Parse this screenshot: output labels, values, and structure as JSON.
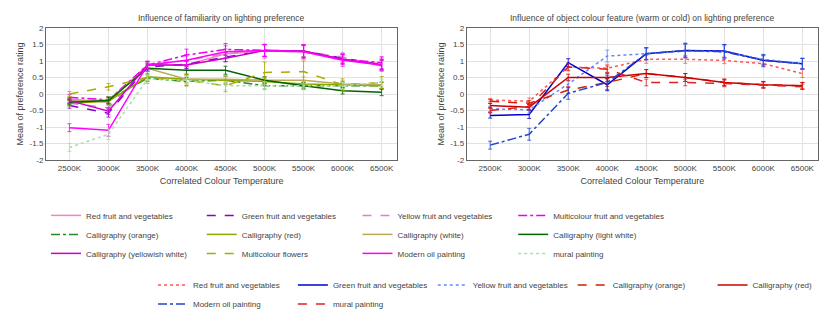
{
  "chart_data": [
    {
      "type": "line",
      "title": "Influence of familiarity on lighting preference",
      "xlabel": "Correlated Colour Temperature",
      "ylabel": "Mean of preference rating",
      "x": [
        2500,
        3000,
        3500,
        4000,
        4500,
        5000,
        5500,
        6000,
        6500
      ],
      "xlim": [
        2200,
        6700
      ],
      "xticks": [
        {
          "value": 2500,
          "label": "2500K"
        },
        {
          "value": 3000,
          "label": "3000K"
        },
        {
          "value": 3500,
          "label": "3500K"
        },
        {
          "value": 4000,
          "label": "4000K"
        },
        {
          "value": 4500,
          "label": "4500K"
        },
        {
          "value": 5000,
          "label": "5000K"
        },
        {
          "value": 5500,
          "label": "5500K"
        },
        {
          "value": 6000,
          "label": "6000K"
        },
        {
          "value": 6500,
          "label": "6500K"
        }
      ],
      "ylim": [
        -2,
        2
      ],
      "yticks": [
        -2,
        -1.5,
        -1,
        -0.5,
        0,
        0.5,
        1,
        1.5,
        2
      ],
      "grid": true,
      "legend": "bottom",
      "series": [
        {
          "name": "Red fruit and vegetables",
          "color": "#ff80c0",
          "line_style": "solid",
          "values": [
            -0.15,
            -0.25,
            0.88,
            0.88,
            1.22,
            1.3,
            1.28,
            1.05,
            0.92
          ],
          "error": [
            0.05,
            0.1,
            0.1,
            0.12,
            0.15,
            0.22,
            0.2,
            0.15,
            0.18
          ]
        },
        {
          "name": "Green fruit and vegetables",
          "color": "#8800cc",
          "line_style": "dashed",
          "values": [
            -0.35,
            -0.58,
            0.82,
            0.9,
            1.12,
            1.32,
            1.3,
            1.08,
            0.88
          ],
          "error": [
            0.08,
            0.12,
            0.1,
            0.12,
            0.14,
            0.18,
            0.18,
            0.14,
            0.16
          ]
        },
        {
          "name": "Yellow fruit and vegetables",
          "color": "#cc88cc",
          "line_style": "dashed",
          "values": [
            -0.28,
            -0.42,
            0.85,
            1.02,
            1.22,
            1.3,
            1.28,
            1.12,
            0.85
          ],
          "error": [
            0.08,
            0.12,
            0.1,
            0.12,
            0.14,
            0.18,
            0.18,
            0.14,
            0.16
          ]
        },
        {
          "name": "Multicolour fruit and vegetables",
          "color": "#ee00ee",
          "line_style": "dashdot",
          "values": [
            -0.1,
            -0.18,
            0.88,
            1.18,
            1.35,
            1.32,
            1.3,
            1.05,
            0.95
          ],
          "error": [
            0.08,
            0.1,
            0.1,
            0.18,
            0.18,
            0.18,
            0.2,
            0.14,
            0.18
          ]
        },
        {
          "name": "Calligraphy (orange)",
          "color": "#228B22",
          "line_style": "dashdot",
          "values": [
            -0.22,
            -0.18,
            0.48,
            0.38,
            0.42,
            0.25,
            0.25,
            0.25,
            0.25
          ],
          "error": [
            0.08,
            0.1,
            0.1,
            0.12,
            0.12,
            0.1,
            0.1,
            0.1,
            0.1
          ]
        },
        {
          "name": "Calligraphy (red)",
          "color": "#88aa00",
          "line_style": "solid",
          "values": [
            -0.28,
            -0.22,
            0.52,
            0.45,
            0.42,
            0.38,
            0.3,
            0.28,
            0.25
          ],
          "error": [
            0.08,
            0.1,
            0.1,
            0.12,
            0.12,
            0.1,
            0.1,
            0.1,
            0.1
          ]
        },
        {
          "name": "Calligraphy (white)",
          "color": "#bbaa55",
          "line_style": "solid",
          "values": [
            -0.22,
            -0.18,
            0.78,
            0.45,
            0.45,
            0.42,
            0.42,
            0.3,
            0.28
          ],
          "error": [
            0.08,
            0.1,
            0.1,
            0.1,
            0.1,
            0.1,
            0.1,
            0.1,
            0.1
          ]
        },
        {
          "name": "Calligraphy (light white)",
          "color": "#006400",
          "line_style": "solid",
          "values": [
            -0.25,
            -0.2,
            0.78,
            0.72,
            0.72,
            0.42,
            0.25,
            0.1,
            0.05
          ],
          "error": [
            0.08,
            0.1,
            0.1,
            0.12,
            0.12,
            0.1,
            0.1,
            0.1,
            0.1
          ]
        },
        {
          "name": "Calligraphy (yellowish white)",
          "color": "#cc00cc",
          "line_style": "solid",
          "values": [
            -0.2,
            -0.52,
            0.88,
            0.88,
            1.08,
            1.32,
            1.3,
            1.05,
            0.88
          ],
          "error": [
            0.08,
            0.1,
            0.1,
            0.1,
            0.1,
            0.18,
            0.18,
            0.14,
            0.14
          ]
        },
        {
          "name": "Multicolour flowers",
          "color": "#aaaa00",
          "line_style": "dashed",
          "values": [
            0.0,
            0.22,
            0.5,
            0.42,
            0.25,
            0.65,
            0.68,
            0.28,
            0.35
          ],
          "error": [
            0.08,
            0.1,
            0.18,
            0.18,
            0.18,
            0.32,
            0.32,
            0.18,
            0.18
          ]
        },
        {
          "name": "Modern oil painting",
          "color": "#ff00ff",
          "line_style": "solid",
          "values": [
            -1.02,
            -1.1,
            0.88,
            1.02,
            1.28,
            1.32,
            1.28,
            1.02,
            0.88
          ],
          "error": [
            0.12,
            0.18,
            0.12,
            0.18,
            0.18,
            0.18,
            0.22,
            0.18,
            0.18
          ]
        },
        {
          "name": "mural painting",
          "color": "#aaddaa",
          "line_style": "dotted",
          "values": [
            -1.62,
            -1.22,
            0.45,
            0.42,
            0.25,
            0.25,
            0.25,
            0.25,
            0.35
          ],
          "error": [
            0.12,
            0.16,
            0.12,
            0.12,
            0.12,
            0.12,
            0.12,
            0.1,
            0.1
          ]
        }
      ]
    },
    {
      "type": "line",
      "title": "Influence of object colour feature (warm or cold) on lighting preference",
      "xlabel": "Correlated Colour Temperature",
      "ylabel": "Mean of preference rating",
      "x": [
        2500,
        3000,
        3500,
        4000,
        4500,
        5000,
        5500,
        6000,
        6500
      ],
      "xlim": [
        2200,
        6700
      ],
      "xticks": [
        {
          "value": 2500,
          "label": "2500K"
        },
        {
          "value": 3000,
          "label": "3000K"
        },
        {
          "value": 3500,
          "label": "3500K"
        },
        {
          "value": 4000,
          "label": "4000K"
        },
        {
          "value": 4500,
          "label": "4500K"
        },
        {
          "value": 5000,
          "label": "5000K"
        },
        {
          "value": 5500,
          "label": "5500K"
        },
        {
          "value": 6000,
          "label": "6000K"
        },
        {
          "value": 6500,
          "label": "6500K"
        }
      ],
      "ylim": [
        -2,
        2
      ],
      "yticks": [
        -2,
        -1.5,
        -1,
        -0.5,
        0,
        0.5,
        1,
        1.5,
        2
      ],
      "grid": true,
      "legend": "bottom",
      "series": [
        {
          "name": "Red fruit and vegetables",
          "color": "#ff5555",
          "line_style": "dotted",
          "values": [
            -0.18,
            -0.22,
            0.82,
            0.78,
            1.05,
            1.05,
            1.02,
            0.92,
            0.62
          ],
          "error": [
            0.04,
            0.1,
            0.12,
            0.12,
            0.12,
            0.12,
            0.1,
            0.1,
            0.12
          ]
        },
        {
          "name": "Green fruit and vegetables",
          "color": "#0000cc",
          "line_style": "solid",
          "values": [
            -0.65,
            -0.62,
            0.95,
            0.28,
            1.22,
            1.32,
            1.3,
            1.02,
            0.92
          ],
          "error": [
            0.08,
            0.12,
            0.12,
            0.18,
            0.18,
            0.2,
            0.2,
            0.14,
            0.16
          ]
        },
        {
          "name": "Yellow fruit and vegetables",
          "color": "#6688ff",
          "line_style": "dotted",
          "values": [
            -0.45,
            -0.48,
            0.3,
            1.15,
            1.22,
            1.3,
            1.28,
            1.05,
            0.92
          ],
          "error": [
            0.08,
            0.1,
            0.12,
            0.18,
            0.18,
            0.2,
            0.18,
            0.14,
            0.16
          ]
        },
        {
          "name": "Calligraphy (orange)",
          "color": "#cc2200",
          "line_style": "dashed",
          "values": [
            -0.22,
            -0.28,
            0.12,
            0.35,
            0.62,
            0.5,
            0.35,
            0.28,
            0.25
          ],
          "error": [
            0.06,
            0.08,
            0.1,
            0.12,
            0.12,
            0.12,
            0.1,
            0.1,
            0.1
          ]
        },
        {
          "name": "Calligraphy (red)",
          "color": "#cc0000",
          "line_style": "solid",
          "values": [
            -0.35,
            -0.4,
            0.5,
            0.5,
            0.62,
            0.5,
            0.35,
            0.28,
            0.25
          ],
          "error": [
            0.06,
            0.08,
            0.1,
            0.12,
            0.12,
            0.12,
            0.1,
            0.1,
            0.1
          ]
        },
        {
          "name": "Modern oil painting",
          "color": "#2244cc",
          "line_style": "dashdot",
          "values": [
            -1.55,
            -1.22,
            0.02,
            0.35,
            1.22,
            1.32,
            1.28,
            1.02,
            0.92
          ],
          "error": [
            0.12,
            0.18,
            0.18,
            0.22,
            0.18,
            0.22,
            0.22,
            0.18,
            0.16
          ]
        },
        {
          "name": "mural painting",
          "color": "#dd2222",
          "line_style": "dashed",
          "values": [
            -0.5,
            -0.38,
            0.82,
            0.75,
            0.35,
            0.35,
            0.32,
            0.28,
            0.22
          ],
          "error": [
            0.06,
            0.08,
            0.1,
            0.1,
            0.1,
            0.1,
            0.1,
            0.08,
            0.08
          ]
        }
      ]
    }
  ]
}
